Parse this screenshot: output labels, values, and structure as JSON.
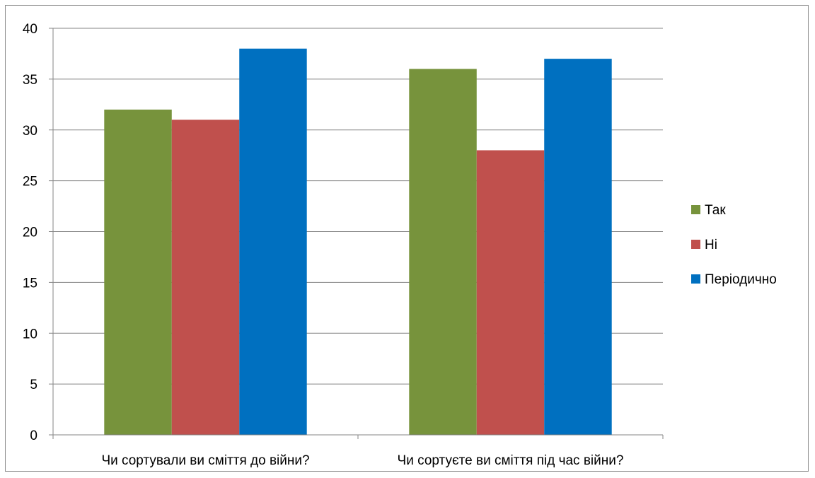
{
  "chart_data": {
    "type": "bar",
    "categories": [
      "Чи сортували ви сміття до війни?",
      "Чи сортуєте ви сміття під час війни?"
    ],
    "series": [
      {
        "name": "Так",
        "color": "#77933C",
        "values": [
          32,
          36
        ]
      },
      {
        "name": "Ні",
        "color": "#C0504D",
        "values": [
          31,
          28
        ]
      },
      {
        "name": "Періодично",
        "color": "#0070C0",
        "values": [
          38,
          37
        ]
      }
    ],
    "ylim": [
      0,
      40
    ],
    "y_ticks": [
      0,
      5,
      10,
      15,
      20,
      25,
      30,
      35,
      40
    ],
    "grid": true,
    "legend_position": "right"
  }
}
